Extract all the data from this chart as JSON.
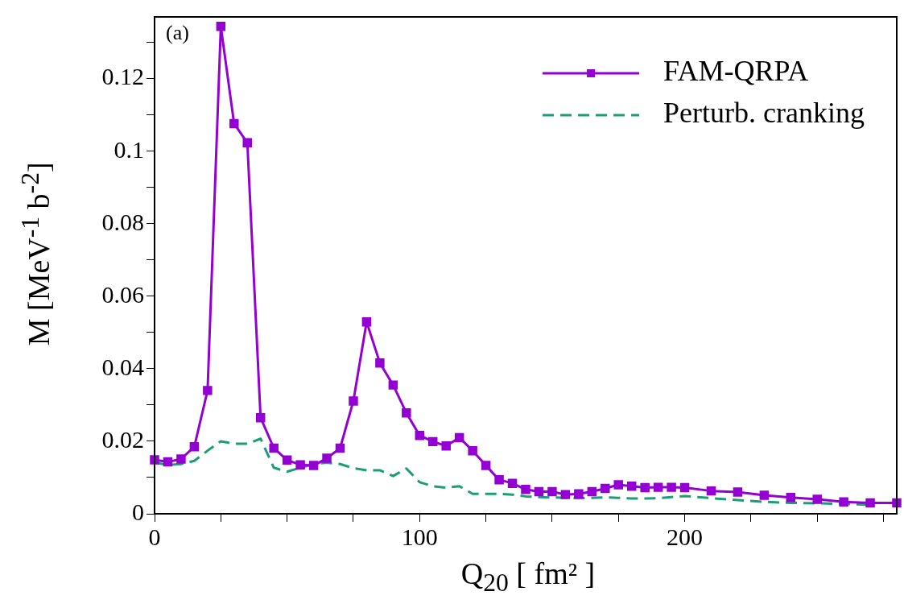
{
  "chart_data": {
    "type": "line",
    "xlabel": "Q$_{20}$ [ fm² ]",
    "ylabel": "M [MeV$^{-1}$ b$^{-2}$]",
    "annotations": [
      "(a)"
    ],
    "x": [
      0,
      5,
      10,
      15,
      20,
      25,
      30,
      35,
      40,
      45,
      50,
      55,
      60,
      65,
      70,
      75,
      80,
      85,
      90,
      95,
      100,
      105,
      110,
      115,
      120,
      125,
      130,
      135,
      140,
      145,
      150,
      155,
      160,
      165,
      170,
      175,
      180,
      185,
      190,
      195,
      200,
      210,
      220,
      230,
      240,
      250,
      260,
      270,
      280
    ],
    "series": [
      {
        "name": "FAM-QRPA",
        "color": "#9400d3",
        "marker": "square",
        "line_style": "solid",
        "values": [
          0.0149,
          0.0143,
          0.0151,
          0.0185,
          0.034,
          0.1344,
          0.1076,
          0.1023,
          0.0265,
          0.0181,
          0.0148,
          0.0135,
          0.0133,
          0.0153,
          0.0181,
          0.0311,
          0.0529,
          0.0416,
          0.0355,
          0.0278,
          0.0216,
          0.0199,
          0.0187,
          0.021,
          0.0174,
          0.0133,
          0.0094,
          0.0084,
          0.0067,
          0.0061,
          0.0061,
          0.0053,
          0.0055,
          0.0061,
          0.007,
          0.008,
          0.0076,
          0.0072,
          0.0073,
          0.0073,
          0.0072,
          0.0063,
          0.006,
          0.0051,
          0.0045,
          0.004,
          0.0033,
          0.003,
          0.003
        ]
      },
      {
        "name": "Perturb. cranking",
        "color": "#1b9e77",
        "marker": "none",
        "line_style": "dashed",
        "values": [
          0.0141,
          0.0135,
          0.0137,
          0.0146,
          0.0174,
          0.02,
          0.0193,
          0.0193,
          0.0207,
          0.0127,
          0.0116,
          0.0127,
          0.0137,
          0.0141,
          0.0137,
          0.0126,
          0.012,
          0.012,
          0.0104,
          0.0125,
          0.0087,
          0.0076,
          0.0072,
          0.0076,
          0.0055,
          0.0055,
          0.0055,
          0.0053,
          0.0048,
          0.0046,
          0.0045,
          0.0044,
          0.0043,
          0.0044,
          0.0045,
          0.0044,
          0.0042,
          0.0042,
          0.0043,
          0.0046,
          0.0049,
          0.0043,
          0.0038,
          0.0033,
          0.003,
          0.0029,
          0.0027,
          0.0025,
          null
        ]
      }
    ],
    "xlim": [
      0,
      280
    ],
    "xticks": [
      0,
      {
        "value": 25,
        "label": null
      },
      {
        "value": 50,
        "label": null
      },
      {
        "value": 75,
        "label": null
      },
      100,
      {
        "value": 125,
        "label": null
      },
      {
        "value": 150,
        "label": null
      },
      {
        "value": 175,
        "label": null
      },
      200,
      {
        "value": 225,
        "label": null
      },
      {
        "value": 250,
        "label": null
      },
      {
        "value": 275,
        "label": null
      }
    ],
    "ylim": [
      0,
      0.137
    ],
    "yticks": [
      0,
      {
        "value": 0.01,
        "label": null
      },
      0.02,
      {
        "value": 0.03,
        "label": null
      },
      0.04,
      {
        "value": 0.05,
        "label": null
      },
      0.06,
      {
        "value": 0.07,
        "label": null
      },
      0.08,
      {
        "value": 0.09,
        "label": null
      },
      0.1,
      {
        "value": 0.11,
        "label": null
      },
      0.12,
      {
        "value": 0.13,
        "label": null
      }
    ],
    "grid": false,
    "legend": "top right"
  }
}
